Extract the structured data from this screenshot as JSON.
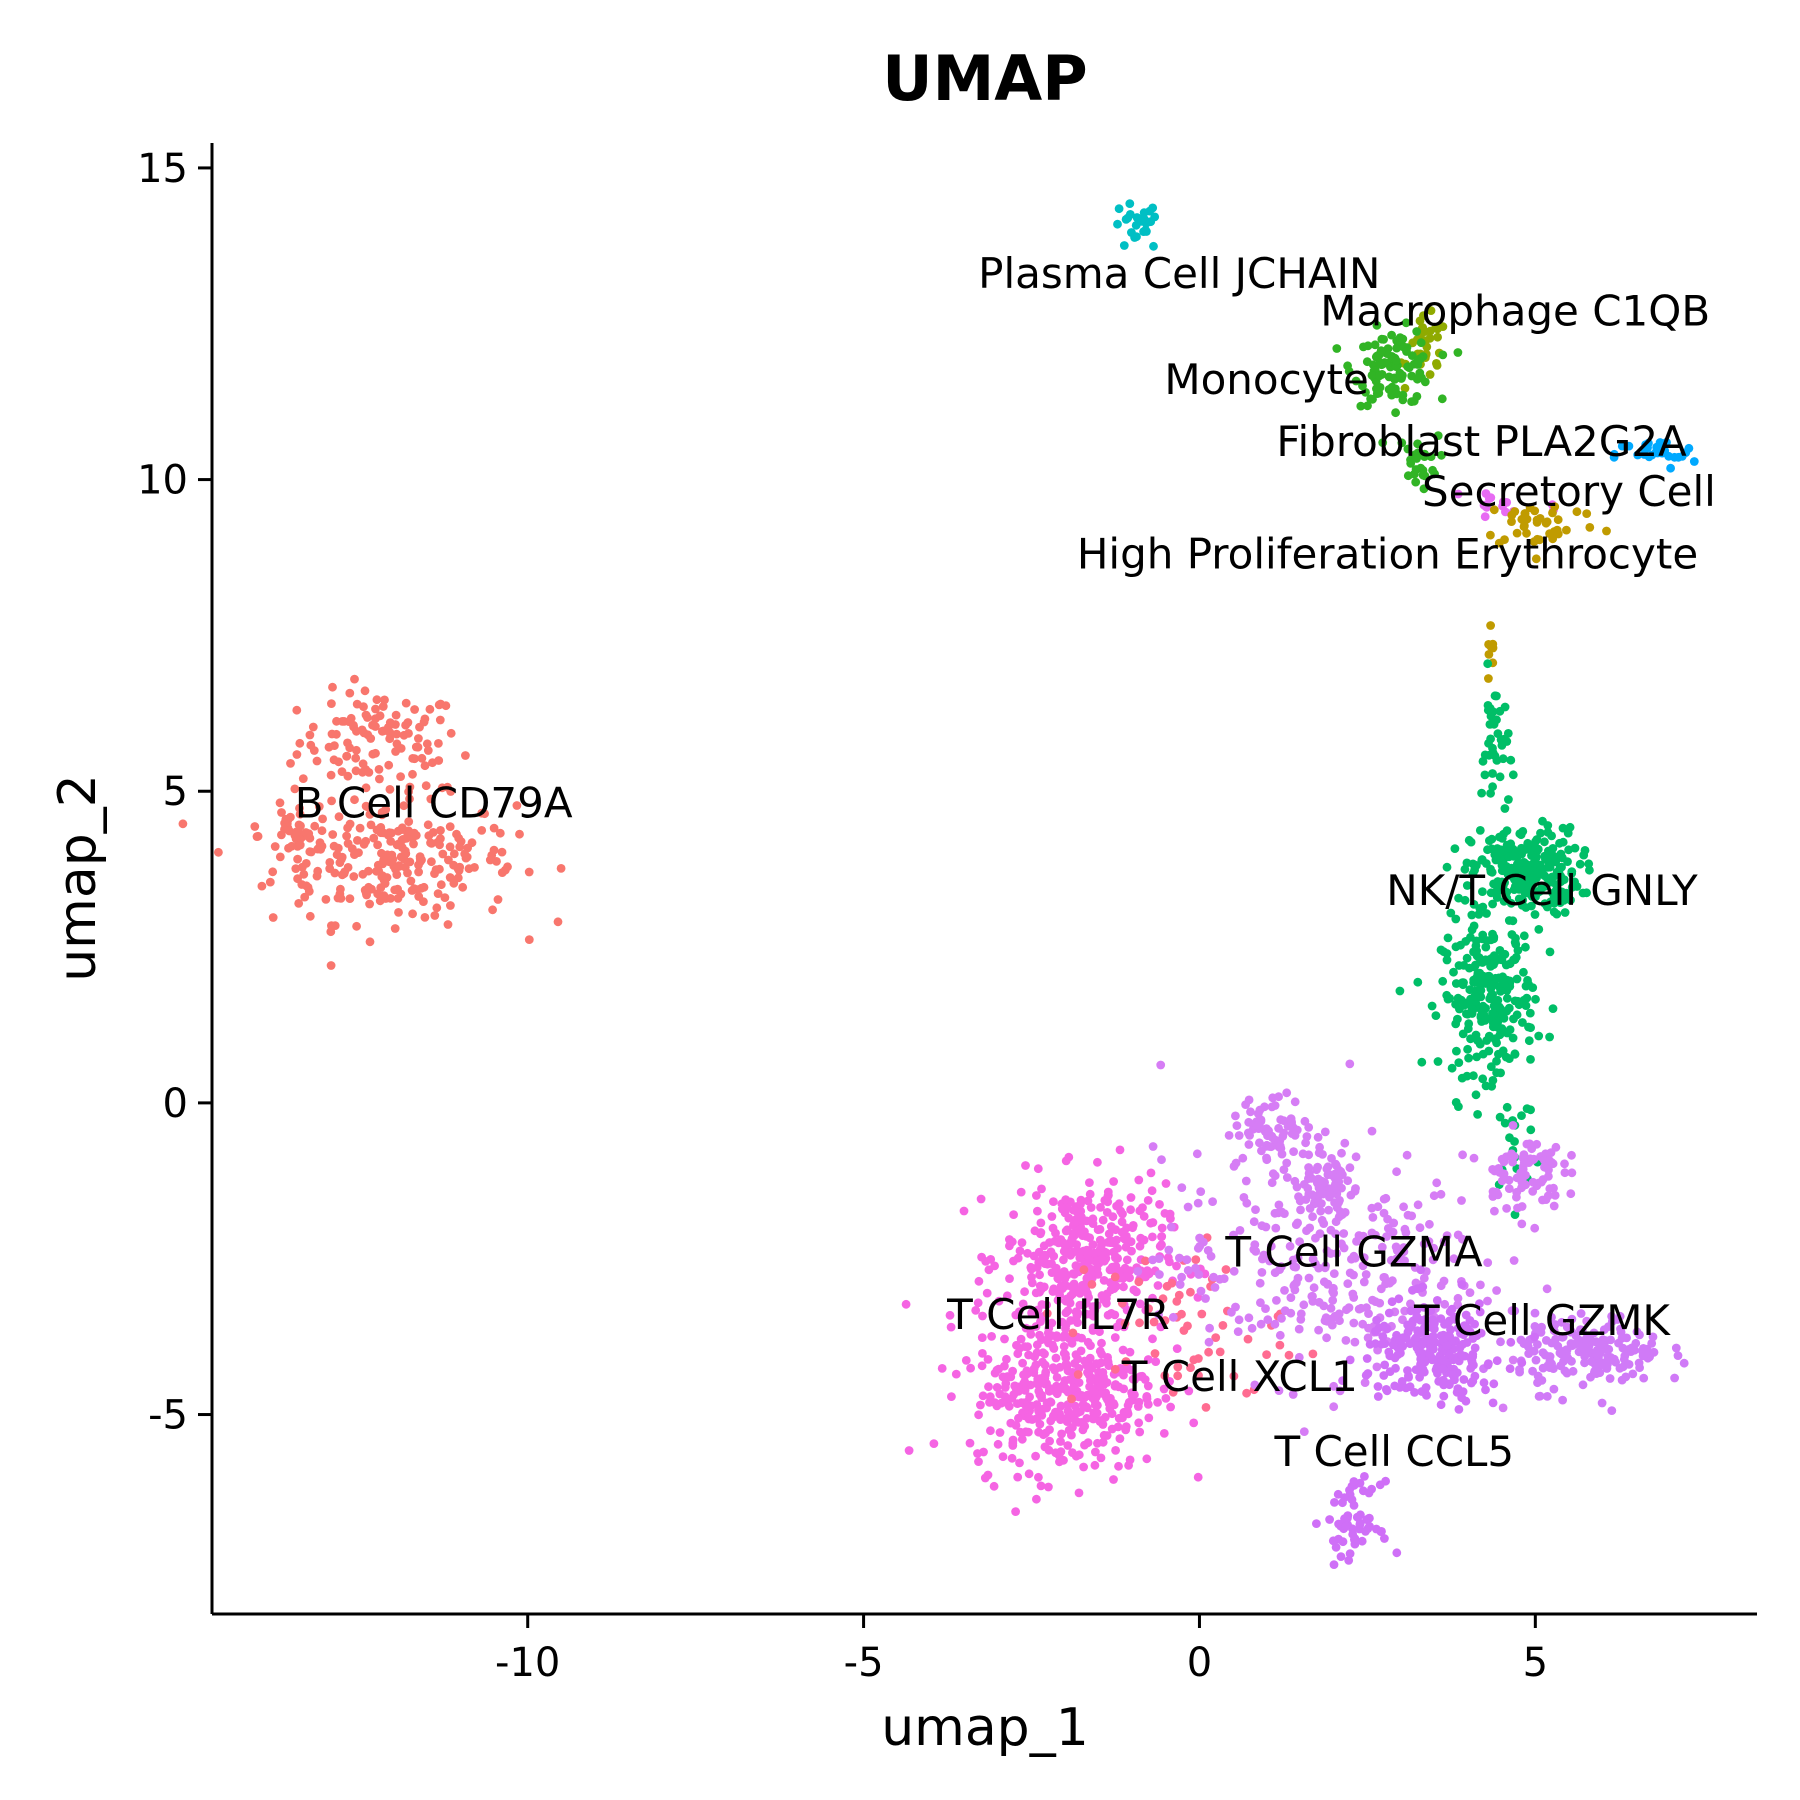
{
  "chart_data": {
    "type": "scatter",
    "title": "UMAP",
    "xlabel": "umap_1",
    "ylabel": "umap_2",
    "xlim": [
      -14.7,
      8.3
    ],
    "ylim": [
      -8.2,
      15.4
    ],
    "xticks": [
      -10,
      -5,
      0,
      5
    ],
    "xtick_labels": [
      "-10",
      "-5",
      "0",
      "5"
    ],
    "yticks": [
      -5,
      0,
      5,
      10,
      15
    ],
    "ytick_labels": [
      "-5",
      "0",
      "5",
      "10",
      "15"
    ],
    "grid": false,
    "legend": "none",
    "series": [
      {
        "name": "B Cell CD79A",
        "color": "#F8766D",
        "blobs": [
          {
            "cx": -12.2,
            "cy": 5.8,
            "sx": 0.6,
            "sy": 0.4,
            "n": 110
          },
          {
            "cx": -12.0,
            "cy": 3.9,
            "sx": 0.9,
            "sy": 0.5,
            "n": 240
          },
          {
            "cx": -13.4,
            "cy": 4.3,
            "sx": 0.3,
            "sy": 0.35,
            "n": 40
          }
        ]
      },
      {
        "name": "Plasma Cell JCHAIN",
        "color": "#00BFC4",
        "blobs": [
          {
            "cx": -0.95,
            "cy": 14.05,
            "sx": 0.18,
            "sy": 0.2,
            "n": 25
          }
        ]
      },
      {
        "name": "Macrophage C1QB",
        "color": "#8FAA00",
        "blobs": [
          {
            "cx": 3.4,
            "cy": 12.1,
            "sx": 0.15,
            "sy": 0.25,
            "n": 30
          }
        ]
      },
      {
        "name": "Monocyte",
        "color": "#31B425",
        "blobs": [
          {
            "cx": 2.9,
            "cy": 11.8,
            "sx": 0.3,
            "sy": 0.3,
            "n": 110
          },
          {
            "cx": 3.25,
            "cy": 10.3,
            "sx": 0.15,
            "sy": 0.2,
            "n": 25
          }
        ]
      },
      {
        "name": "Fibroblast PLA2G2A",
        "color": "#00A9FF",
        "blobs": [
          {
            "cx": 6.8,
            "cy": 10.4,
            "sx": 0.3,
            "sy": 0.12,
            "n": 30
          }
        ]
      },
      {
        "name": "Secretory Cell",
        "color": "#E76BF3",
        "blobs": [
          {
            "cx": 4.4,
            "cy": 9.6,
            "sx": 0.5,
            "sy": 0.2,
            "n": 15
          }
        ]
      },
      {
        "name": "High Proliferation Erythrocyte",
        "color": "#C09B00",
        "blobs": [
          {
            "cx": 5.1,
            "cy": 9.3,
            "sx": 0.45,
            "sy": 0.2,
            "n": 40
          },
          {
            "cx": 4.35,
            "cy": 7.3,
            "sx": 0.04,
            "sy": 0.3,
            "n": 8
          }
        ]
      },
      {
        "name": "NK/T Cell GNLY",
        "color": "#00BE67",
        "blobs": [
          {
            "cx": 4.85,
            "cy": 3.7,
            "sx": 0.4,
            "sy": 0.35,
            "n": 260
          },
          {
            "cx": 4.3,
            "cy": 1.7,
            "sx": 0.35,
            "sy": 0.6,
            "n": 250
          },
          {
            "cx": 4.4,
            "cy": 5.7,
            "sx": 0.1,
            "sy": 0.6,
            "n": 40
          },
          {
            "cx": 4.7,
            "cy": -0.6,
            "sx": 0.2,
            "sy": 0.5,
            "n": 20
          }
        ]
      },
      {
        "name": "T Cell IL7R",
        "color": "#F564E3",
        "blobs": [
          {
            "cx": -1.7,
            "cy": -2.5,
            "sx": 0.6,
            "sy": 0.6,
            "n": 360
          },
          {
            "cx": -2.0,
            "cy": -4.6,
            "sx": 0.7,
            "sy": 0.65,
            "n": 420
          }
        ]
      },
      {
        "name": "T Cell XCL1",
        "color": "#FF6C91",
        "blobs": [
          {
            "cx": -0.3,
            "cy": -3.6,
            "sx": 0.8,
            "sy": 0.7,
            "n": 60
          }
        ]
      },
      {
        "name": "T Cell GZMA",
        "color": "#D67DF5",
        "blobs": [
          {
            "cx": 1.8,
            "cy": -2.6,
            "sx": 1.2,
            "sy": 0.9,
            "n": 320
          },
          {
            "cx": 1.1,
            "cy": -0.4,
            "sx": 0.3,
            "sy": 0.25,
            "n": 70
          },
          {
            "cx": 1.9,
            "cy": -1.2,
            "sx": 0.25,
            "sy": 0.3,
            "n": 60
          },
          {
            "cx": 4.8,
            "cy": -1.1,
            "sx": 0.3,
            "sy": 0.3,
            "n": 80
          }
        ]
      },
      {
        "name": "T Cell GZMK",
        "color": "#D07AF7",
        "blobs": [
          {
            "cx": 5.8,
            "cy": -4.0,
            "sx": 0.55,
            "sy": 0.3,
            "n": 180
          }
        ]
      },
      {
        "name": "T Cell CCL5",
        "color": "#CF6FF7",
        "blobs": [
          {
            "cx": 3.5,
            "cy": -4.0,
            "sx": 0.5,
            "sy": 0.4,
            "n": 240
          },
          {
            "cx": 2.3,
            "cy": -6.7,
            "sx": 0.2,
            "sy": 0.3,
            "n": 60
          }
        ]
      }
    ],
    "labels": [
      {
        "text": "Plasma Cell JCHAIN",
        "x": -0.3,
        "y": 13.3
      },
      {
        "text": "Macrophage C1QB",
        "x": 4.7,
        "y": 12.7
      },
      {
        "text": "Monocyte",
        "x": 1.0,
        "y": 11.6
      },
      {
        "text": "Fibroblast PLA2G2A",
        "x": 4.2,
        "y": 10.6
      },
      {
        "text": "Secretory Cell",
        "x": 5.5,
        "y": 9.8
      },
      {
        "text": "High Proliferation Erythrocyte",
        "x": 2.8,
        "y": 8.8
      },
      {
        "text": "B Cell CD79A",
        "x": -11.4,
        "y": 4.8
      },
      {
        "text": "NK/T Cell GNLY",
        "x": 5.1,
        "y": 3.4
      },
      {
        "text": "T Cell GZMA",
        "x": 2.3,
        "y": -2.4
      },
      {
        "text": "T Cell IL7R",
        "x": -2.1,
        "y": -3.4
      },
      {
        "text": "T Cell GZMK",
        "x": 5.1,
        "y": -3.5
      },
      {
        "text": "T Cell XCL1",
        "x": 0.6,
        "y": -4.4
      },
      {
        "text": "T Cell CCL5",
        "x": 2.9,
        "y": -5.6
      }
    ]
  }
}
